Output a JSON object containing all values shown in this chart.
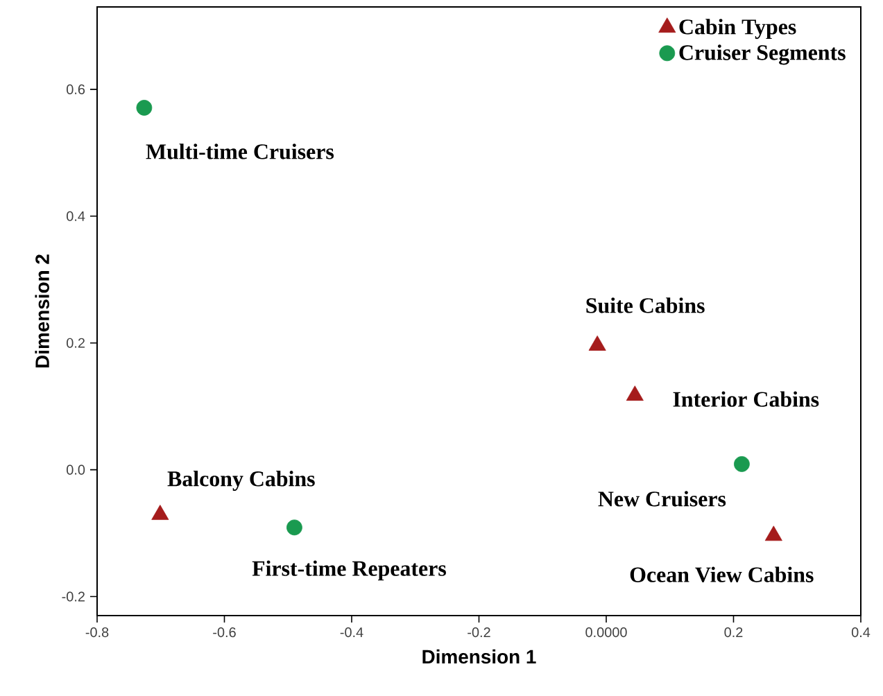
{
  "chart_data": {
    "type": "scatter",
    "xlabel": "Dimension 1",
    "ylabel": "Dimension 2",
    "xlim": [
      -0.8,
      0.4
    ],
    "ylim": [
      -0.23,
      0.73
    ],
    "xticks": [
      -0.8,
      -0.6,
      -0.4,
      -0.2,
      {
        "value": 0,
        "label": "0.0000"
      },
      0.2,
      0.4
    ],
    "yticks": [
      -0.2,
      {
        "value": 0,
        "label": "0.0"
      },
      0.2,
      0.4,
      0.6
    ],
    "grid": false,
    "legend": "top right",
    "series": [
      {
        "name": "Cabin Types",
        "color": "#a51c1c",
        "marker": "triangle",
        "x": [
          -0.014,
          0.045,
          -0.701,
          0.263
        ],
        "values": [
          0.196,
          0.117,
          -0.071,
          -0.104
        ]
      },
      {
        "name": "Cruiser Segments",
        "color": "#1a9a50",
        "marker": "circle",
        "x": [
          -0.726,
          -0.49,
          0.213
        ],
        "values": [
          0.571,
          -0.091,
          0.009
        ]
      }
    ],
    "annotations": [
      {
        "text": "Suite Cabins",
        "x": -0.014,
        "y": 0.196
      },
      {
        "text": "Interior Cabins",
        "x": 0.045,
        "y": 0.117
      },
      {
        "text": "Balcony Cabins",
        "x": -0.701,
        "y": -0.071
      },
      {
        "text": "Ocean View Cabins",
        "x": 0.263,
        "y": -0.104
      },
      {
        "text": "Multi-time Cruisers",
        "x": -0.726,
        "y": 0.571
      },
      {
        "text": "First-time Repeaters",
        "x": -0.49,
        "y": -0.091
      },
      {
        "text": "New Cruisers",
        "x": 0.213,
        "y": 0.009
      }
    ]
  }
}
